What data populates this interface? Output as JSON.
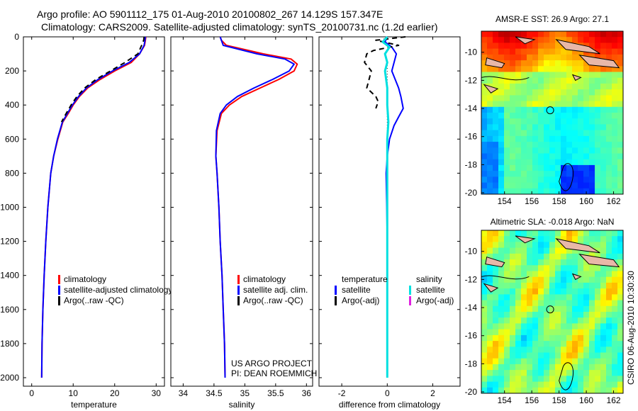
{
  "header": {
    "line1": "Argo profile: AO 5901112_175 01-Aug-2010 20100802_267 14.129S 157.347E",
    "line2": "Climatology: CARS2009. Satellite-adjusted climatology: synTS_20100731.nc (1.2d earlier)"
  },
  "footer_stamp": "CSIRO 06-Aug-2010 10:30:30",
  "credits": [
    "US ARGO PROJECT",
    "PI: DEAN ROEMMICH"
  ],
  "colors": {
    "climatology": "#ff0000",
    "satellite": "#0000ff",
    "argo": "#000000",
    "cyan": "#00e0e0",
    "magenta": "#e020e0"
  },
  "chart_data": [
    {
      "type": "line",
      "xlabel": "temperature",
      "ylabel": "",
      "xlim": [
        -2,
        32
      ],
      "ylim": [
        2050,
        0
      ],
      "y_inverted": true,
      "xticks": [
        0,
        10,
        20,
        30
      ],
      "yticks": [
        0,
        200,
        400,
        600,
        800,
        1000,
        1200,
        1400,
        1600,
        1800,
        2000
      ],
      "legend": {
        "placement": "bottom-right",
        "entries": [
          "climatology",
          "satellite-adjusted climatology",
          "Argo(..raw -QC)"
        ]
      },
      "series": [
        {
          "name": "climatology",
          "color": "#ff0000",
          "x": [
            27.5,
            27.4,
            27.2,
            26.0,
            24.0,
            20.0,
            16.5,
            13.5,
            11.5,
            10.0,
            8.8,
            7.5,
            6.3,
            5.3,
            4.6,
            3.9,
            3.4,
            3.0,
            2.7,
            2.5,
            2.4
          ],
          "y": [
            0,
            20,
            50,
            100,
            150,
            200,
            250,
            300,
            350,
            400,
            450,
            500,
            600,
            700,
            800,
            1000,
            1200,
            1400,
            1600,
            1800,
            2000
          ]
        },
        {
          "name": "satellite-adjusted climatology",
          "color": "#0000ff",
          "x": [
            27.4,
            27.3,
            27.1,
            26.0,
            23.5,
            19.5,
            16.0,
            13.2,
            11.3,
            9.8,
            8.6,
            7.4,
            6.2,
            5.3,
            4.6,
            3.9,
            3.4,
            3.0,
            2.7,
            2.5,
            2.4
          ],
          "y": [
            0,
            20,
            50,
            100,
            150,
            200,
            250,
            300,
            350,
            400,
            450,
            500,
            600,
            700,
            800,
            1000,
            1200,
            1400,
            1600,
            1800,
            2000
          ]
        },
        {
          "name": "Argo(..raw -QC)",
          "color": "#000000",
          "dashed": true,
          "x": [
            27.1,
            27.0,
            26.5,
            25.6,
            22.5,
            19.0,
            15.5,
            12.8,
            10.9,
            9.5,
            8.3,
            7.2
          ],
          "y": [
            0,
            20,
            50,
            100,
            150,
            200,
            250,
            300,
            350,
            400,
            450,
            500
          ]
        }
      ]
    },
    {
      "type": "line",
      "xlabel": "salinity",
      "ylabel": "",
      "xlim": [
        33.8,
        36.1
      ],
      "ylim": [
        2050,
        0
      ],
      "y_inverted": true,
      "xticks": [
        34,
        34.5,
        35,
        35.5,
        36
      ],
      "legend": {
        "placement": "bottom-right",
        "entries": [
          "climatology",
          "satellite adj. clim.",
          "Argo(..raw -QC)"
        ]
      },
      "series": [
        {
          "name": "climatology",
          "color": "#ff0000",
          "x": [
            34.6,
            34.62,
            34.7,
            35.3,
            35.75,
            35.85,
            35.8,
            35.55,
            35.25,
            34.95,
            34.75,
            34.62,
            34.55,
            34.53,
            34.55,
            34.58,
            34.6,
            34.63,
            34.65,
            34.67,
            34.68
          ],
          "y": [
            0,
            20,
            50,
            100,
            130,
            160,
            200,
            250,
            300,
            350,
            400,
            450,
            550,
            700,
            800,
            1000,
            1200,
            1400,
            1600,
            1800,
            2000
          ]
        },
        {
          "name": "satellite adj. clim.",
          "color": "#0000ff",
          "x": [
            34.6,
            34.62,
            34.65,
            35.2,
            35.65,
            35.8,
            35.72,
            35.45,
            35.15,
            34.88,
            34.7,
            34.6,
            34.54,
            34.53,
            34.55,
            34.58,
            34.6,
            34.63,
            34.65,
            34.67,
            34.68
          ],
          "y": [
            0,
            20,
            50,
            100,
            130,
            160,
            200,
            250,
            300,
            350,
            400,
            450,
            550,
            700,
            800,
            1000,
            1200,
            1400,
            1600,
            1800,
            2000
          ]
        },
        {
          "name": "Argo(..raw -QC)",
          "color": "#000000",
          "dashed": true,
          "x": [],
          "y": []
        }
      ]
    },
    {
      "type": "line",
      "xlabel": "difference from climatology",
      "ylabel": "",
      "xlim": [
        -3,
        3.2
      ],
      "ylim": [
        2050,
        0
      ],
      "y_inverted": true,
      "xticks": [
        -2,
        0,
        2
      ],
      "legend": {
        "placement": "bottom",
        "groups": [
          {
            "title": "temperature",
            "entries": [
              "satellite",
              "Argo(-adj)"
            ]
          },
          {
            "title": "salinity",
            "entries": [
              "satellite",
              "Argo(-adj)"
            ]
          }
        ]
      },
      "series": [
        {
          "name": "satellite",
          "color": "#0000ff",
          "x": [
            0.0,
            -0.1,
            0.2,
            0.4,
            0.3,
            0.2,
            0.35,
            0.5,
            0.6,
            0.7,
            0.5,
            0.3,
            0.1,
            0.0,
            -0.05,
            -0.02,
            0.0,
            0.0,
            0.0,
            0.0,
            0.0
          ],
          "y": [
            0,
            30,
            60,
            100,
            150,
            200,
            250,
            300,
            350,
            420,
            470,
            520,
            600,
            700,
            800,
            1000,
            1200,
            1400,
            1600,
            1800,
            2000
          ]
        },
        {
          "name": "Argo(-adj)",
          "color": "#000000",
          "dashed": true,
          "x": [
            0.8,
            -0.5,
            0.5,
            -0.6,
            -0.9,
            -1.0,
            -0.7,
            -0.8,
            -0.9,
            -0.5,
            -0.4,
            -0.5
          ],
          "y": [
            0,
            20,
            50,
            80,
            100,
            150,
            200,
            250,
            300,
            350,
            380,
            420
          ]
        },
        {
          "name": "satellite",
          "color": "#00e0e0",
          "x": [
            0.0,
            -0.2,
            0.1,
            -0.1,
            0.0,
            -0.1,
            0.0,
            0.0,
            0.05,
            0.0,
            0.0,
            0.0,
            0.0,
            0.0,
            0.0,
            0.0,
            0.0
          ],
          "y": [
            0,
            30,
            60,
            100,
            150,
            200,
            300,
            400,
            500,
            600,
            700,
            800,
            1000,
            1200,
            1500,
            1800,
            2000
          ]
        }
      ]
    },
    {
      "type": "heatmap",
      "title": "AMSR-E SST: 26.9 Argo: 27.1",
      "xlim": [
        152.3,
        162.7
      ],
      "ylim": [
        -20.1,
        -8.5
      ],
      "xticks": [
        154,
        156,
        158,
        160,
        162
      ],
      "yticks": [
        -10,
        -12,
        -14,
        -16,
        -18,
        -20
      ],
      "marker": {
        "lon": 157.347,
        "lat": -14.129
      }
    },
    {
      "type": "heatmap",
      "title": "Altimetric SLA: -0.018 Argo: NaN",
      "xlim": [
        152.3,
        162.7
      ],
      "ylim": [
        -20.1,
        -8.5
      ],
      "xticks": [
        154,
        156,
        158,
        160,
        162
      ],
      "yticks": [
        -10,
        -12,
        -14,
        -16,
        -18,
        -20
      ],
      "marker": {
        "lon": 157.347,
        "lat": -14.129
      }
    }
  ]
}
